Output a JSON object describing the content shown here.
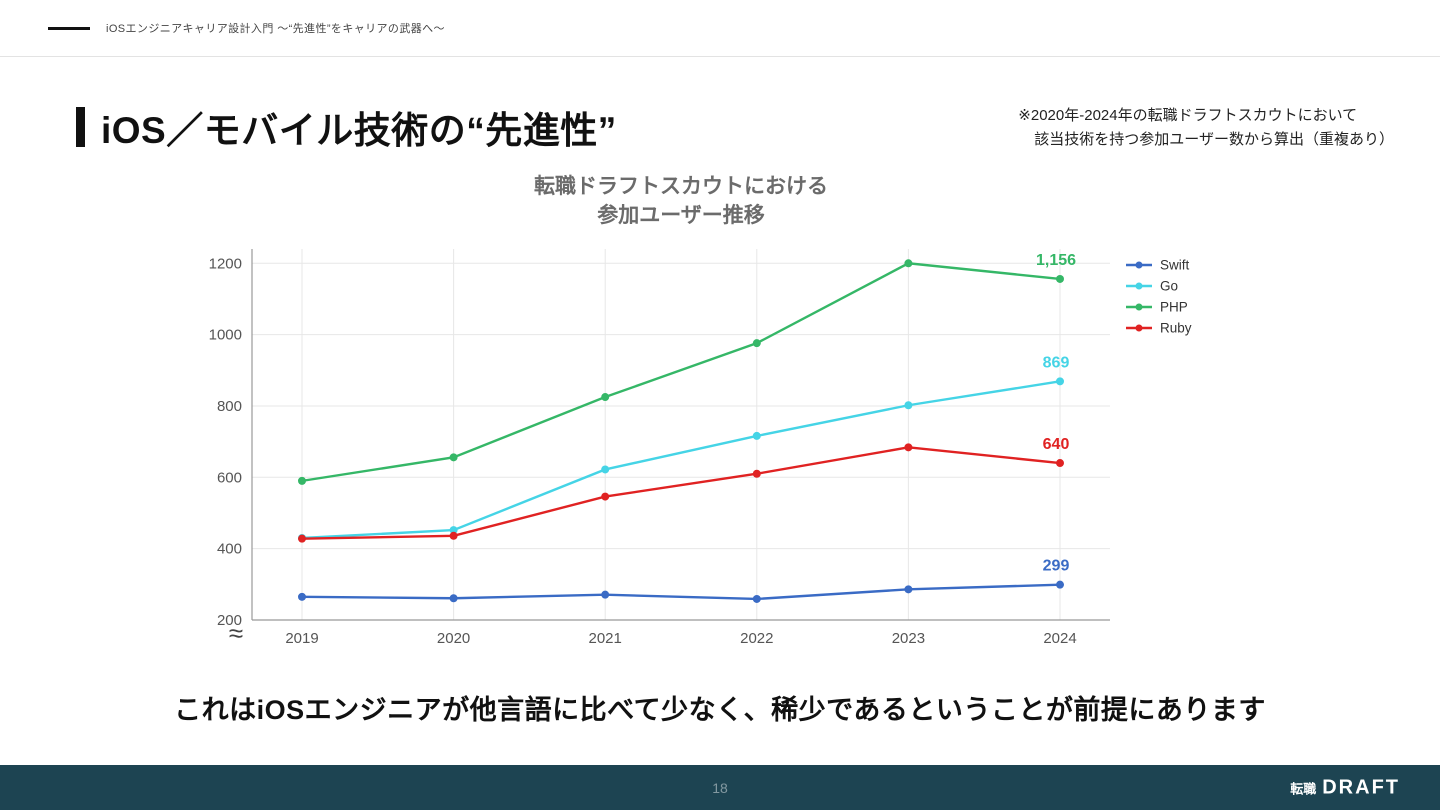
{
  "header": {
    "deck_title": "iOSエンジニアキャリア設計入門 〜“先進性”をキャリアの武器へ〜"
  },
  "title": {
    "text": "iOS／モバイル技術の“先進性”"
  },
  "note": {
    "line1": "※2020年-2024年の転職ドラフトスカウトにおいて",
    "line2": "該当技術を持つ参加ユーザー数から算出（重複あり）"
  },
  "chart_data": {
    "type": "line",
    "title_lines": [
      "転職ドラフトスカウトにおける",
      "参加ユーザー推移"
    ],
    "x": [
      2019,
      2020,
      2021,
      2022,
      2023,
      2024
    ],
    "series": [
      {
        "name": "Swift",
        "color": "#3a6bc5",
        "values": [
          265,
          261,
          271,
          259,
          286,
          299
        ],
        "end_label": "299"
      },
      {
        "name": "Go",
        "color": "#45d4e6",
        "values": [
          430,
          452,
          622,
          716,
          802,
          869
        ],
        "end_label": "869"
      },
      {
        "name": "PHP",
        "color": "#35b767",
        "values": [
          590,
          656,
          825,
          976,
          1200,
          1156
        ],
        "end_label": "1,156"
      },
      {
        "name": "Ruby",
        "color": "#e02222",
        "values": [
          428,
          436,
          546,
          610,
          684,
          640
        ],
        "end_label": "640"
      }
    ],
    "ylim": [
      200,
      1200
    ],
    "yticks": [
      200,
      400,
      600,
      800,
      1000,
      1200
    ],
    "axis_break": "≈",
    "grid": true,
    "legend_position": "top-right"
  },
  "message": {
    "text": "これはiOSエンジニアが他言語に比べて少なく、稀少であるということが前提にあります"
  },
  "footer": {
    "page_number": "18",
    "logo_prefix": "転職",
    "logo_text": "DRAFT",
    "bg_color": "#1d4452"
  }
}
